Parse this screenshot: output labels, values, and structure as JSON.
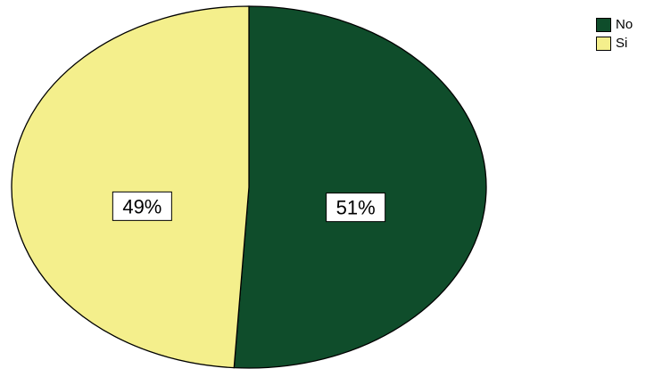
{
  "chart_data": {
    "type": "pie",
    "title": "",
    "slices": [
      {
        "label": "No",
        "value": 51,
        "display": "51%",
        "color": "#0f4d2b"
      },
      {
        "label": "Si",
        "value": 49,
        "display": "49%",
        "color": "#f4ef8c"
      }
    ],
    "legend": {
      "position": "top-right",
      "entries": [
        "No",
        "Si"
      ]
    }
  }
}
